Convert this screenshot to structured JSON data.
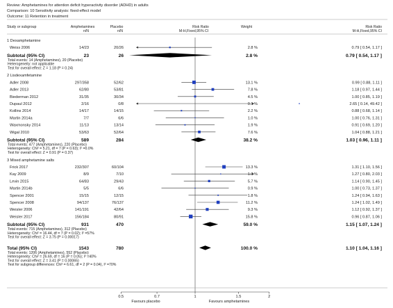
{
  "review": {
    "review": "Review:  Amphetamines for attention deficit hyperactivity disorder (ADHD) in adults",
    "comparison": "Comparison:  10 Sensitivity analysis: fixed-effect model",
    "outcome": "Outcome:  11 Retention in treatment"
  },
  "columns": {
    "study": "Study or subgroup",
    "amph": "Amphetamines",
    "amph_sub": "n/N",
    "placebo": "Placebo",
    "placebo_sub": "n/N",
    "rr": "Risk Ratio",
    "rr_sub": "M-H,Fixed,95% CI",
    "weight": "Weight",
    "rr2": "Risk Ratio",
    "rr2_sub": "M-H,Fixed,95% CI"
  },
  "chart_data": {
    "type": "forest",
    "x_scale": "log",
    "xlim": [
      0.5,
      2
    ],
    "ticks": [
      "0.5",
      "0.7",
      "1",
      "1.5",
      "2"
    ],
    "x_left_label": "Favours placebo",
    "x_right_label": "Favours amphetamines",
    "groups": [
      {
        "title": "1 Dexamphetamine",
        "studies": [
          {
            "name": "Weiss 2006",
            "amph": "14/23",
            "placebo": "20/26",
            "weight": "2.8 %",
            "ci_text": "0.79 [ 0.54, 1.17 ]",
            "rr": 0.79,
            "lo": 0.54,
            "hi": 1.17,
            "w": 2.8
          }
        ],
        "subtotal": {
          "label": "Subtotal (95% CI)",
          "amph": "23",
          "placebo": "26",
          "weight": "2.8 %",
          "ci_text": "0.79 [ 0.54, 1.17 ]",
          "rr": 0.79,
          "lo": 0.54,
          "hi": 1.17
        },
        "notes": [
          "Total events: 14 (Amphetamines), 20 (Placebo)",
          "Heterogeneity: not applicable",
          "Test for overall effect: Z = 1.18 (P = 0.24)"
        ]
      },
      {
        "title": "2 Lisdexamfetamine",
        "studies": [
          {
            "name": "Adler 2008",
            "amph": "297/358",
            "placebo": "52/62",
            "weight": "13.1 %",
            "ci_text": "0.99 [ 0.88, 1.11 ]",
            "rr": 0.99,
            "lo": 0.88,
            "hi": 1.11,
            "w": 13.1
          },
          {
            "name": "Adler 2013",
            "amph": "62/80",
            "placebo": "53/81",
            "weight": "7.8 %",
            "ci_text": "1.18 [ 0.97, 1.44 ]",
            "rr": 1.18,
            "lo": 0.97,
            "hi": 1.44,
            "w": 7.8
          },
          {
            "name": "Biederman 2012",
            "amph": "31/35",
            "placebo": "30/34",
            "weight": "4.5 %",
            "ci_text": "1.00 [ 0.85, 1.19 ]",
            "rr": 1.0,
            "lo": 0.85,
            "hi": 1.19,
            "w": 4.5
          },
          {
            "name": "Dupaul 2012",
            "amph": "2/16",
            "placebo": "0/8",
            "weight": "0.1 %",
            "ci_text": "2.65 [ 0.14, 49.42 ]",
            "rr": 2.65,
            "lo": 0.14,
            "hi": 49.42,
            "w": 0.1
          },
          {
            "name": "Kollins 2014",
            "amph": "14/17",
            "placebo": "14/15",
            "weight": "2.2 %",
            "ci_text": "0.88 [ 0.68, 1.14 ]",
            "rr": 0.88,
            "lo": 0.68,
            "hi": 1.14,
            "w": 2.2
          },
          {
            "name": "Martin 2014a",
            "amph": "7/7",
            "placebo": "6/6",
            "weight": "1.0 %",
            "ci_text": "1.00 [ 0.76, 1.31 ]",
            "rr": 1.0,
            "lo": 0.76,
            "hi": 1.31,
            "w": 1.0
          },
          {
            "name": "Waxmonsky 2014",
            "amph": "11/13",
            "placebo": "13/14",
            "weight": "1.9 %",
            "ci_text": "0.91 [ 0.69, 1.20 ]",
            "rr": 0.91,
            "lo": 0.69,
            "hi": 1.2,
            "w": 1.9
          },
          {
            "name": "Wigal 2010",
            "amph": "53/63",
            "placebo": "52/64",
            "weight": "7.6 %",
            "ci_text": "1.04 [ 0.88, 1.21 ]",
            "rr": 1.04,
            "lo": 0.88,
            "hi": 1.21,
            "w": 7.6
          }
        ],
        "subtotal": {
          "label": "Subtotal (95% CI)",
          "amph": "589",
          "placebo": "284",
          "weight": "38.2 %",
          "ci_text": "1.03 [ 0.96, 1.11 ]",
          "rr": 1.03,
          "lo": 0.96,
          "hi": 1.11
        },
        "notes": [
          "Total events: 477 (Amphetamines), 220 (Placebo)",
          "Heterogeneity: Chi² = 5.21, df = 7 (P = 0.63); I² =0.0%",
          "Test for overall effect: Z = 0.91 (P = 0.37)"
        ]
      },
      {
        "title": "3 Mixed amphetamine salts",
        "studies": [
          {
            "name": "Frick 2017",
            "amph": "232/307",
            "placebo": "60/104",
            "weight": "13.3 %",
            "ci_text": "1.31 [ 1.10, 1.56 ]",
            "rr": 1.31,
            "lo": 1.1,
            "hi": 1.56,
            "w": 13.3
          },
          {
            "name": "Kay 2009",
            "amph": "8/9",
            "placebo": "7/10",
            "weight": "1.0 %",
            "ci_text": "1.27 [ 0.80, 2.03 ]",
            "rr": 1.27,
            "lo": 0.8,
            "hi": 2.03,
            "w": 1.0
          },
          {
            "name": "Levin 2015",
            "amph": "64/83",
            "placebo": "29/43",
            "weight": "5.7 %",
            "ci_text": "1.14 [ 0.90, 1.45 ]",
            "rr": 1.14,
            "lo": 0.9,
            "hi": 1.45,
            "w": 5.7
          },
          {
            "name": "Martin 2014b",
            "amph": "5/5",
            "placebo": "6/6",
            "weight": "0.9 %",
            "ci_text": "1.00 [ 0.73, 1.37 ]",
            "rr": 1.0,
            "lo": 0.73,
            "hi": 1.37,
            "w": 0.9
          },
          {
            "name": "Spencer 2001",
            "amph": "15/15",
            "placebo": "12/15",
            "weight": "1.8 %",
            "ci_text": "1.24 [ 0.94, 1.63 ]",
            "rr": 1.24,
            "lo": 0.94,
            "hi": 1.63,
            "w": 1.8
          },
          {
            "name": "Spencer 2008",
            "amph": "94/137",
            "placebo": "76/137",
            "weight": "11.2 %",
            "ci_text": "1.24 [ 1.02, 1.49 ]",
            "rr": 1.24,
            "lo": 1.02,
            "hi": 1.49,
            "w": 11.2
          },
          {
            "name": "Weisler 2006",
            "amph": "141/191",
            "placebo": "42/64",
            "weight": "9.3 %",
            "ci_text": "1.12 [ 0.92, 1.37 ]",
            "rr": 1.12,
            "lo": 0.92,
            "hi": 1.37,
            "w": 9.3
          },
          {
            "name": "Weisler 2017",
            "amph": "156/184",
            "placebo": "80/91",
            "weight": "15.8 %",
            "ci_text": "0.96 [ 0.87, 1.06 ]",
            "rr": 0.96,
            "lo": 0.87,
            "hi": 1.06,
            "w": 15.8
          }
        ],
        "subtotal": {
          "label": "Subtotal (95% CI)",
          "amph": "931",
          "placebo": "470",
          "weight": "59.0 %",
          "ci_text": "1.15 [ 1.07, 1.24 ]",
          "rr": 1.15,
          "lo": 1.07,
          "hi": 1.24
        },
        "notes": [
          "Total events: 715 (Amphetamines), 312 (Placebo)",
          "Heterogeneity: Chi² = 16.44, df = 7 (P = 0.02); I² =57%",
          "Test for overall effect: Z = 3.75 (P = 0.00017)"
        ]
      }
    ],
    "total": {
      "label": "Total (95% CI)",
      "amph": "1543",
      "placebo": "780",
      "weight": "100.0 %",
      "ci_text": "1.10 [ 1.04, 1.16 ]",
      "rr": 1.1,
      "lo": 1.04,
      "hi": 1.16
    },
    "total_notes": [
      "Total events: 1206 (Amphetamines), 552 (Placebo)",
      "Heterogeneity: Chi² = 26.69, df = 16 (P = 0.05); I² =40%",
      "Test for overall effect: Z = 3.41 (P = 0.00065)",
      "Test for subgroup differences: Chi² = 6.61, df = 2 (P = 0.04), I² =70%"
    ]
  },
  "colors": {
    "square": "#1f3fbf",
    "diamond": "#000000",
    "line": "#333333"
  }
}
